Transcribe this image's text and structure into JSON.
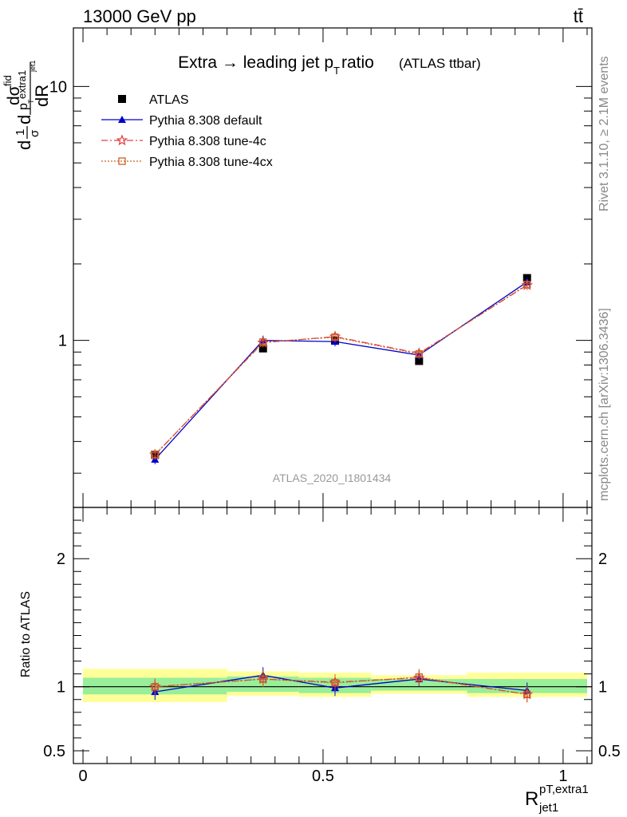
{
  "header": {
    "left": "13000 GeV pp",
    "right": "tt̄"
  },
  "side_labels": {
    "rivet": "Rivet 3.1.10, ≥ 2.1M events",
    "mcplots": "mcplots.cern.ch [arXiv:1306.3436]"
  },
  "watermark": "ATLAS_2020_I1801434",
  "chart_data": [
    {
      "type": "line",
      "title_main": "Extra → leading jet p",
      "title_sub": "T",
      "title_tail": " ratio",
      "title_small": "(ATLAS ttbar)",
      "ylabel": {
        "frac1_num": "1",
        "frac1_den": "σ",
        "d1": "d",
        "numerator_main": "dσ",
        "numerator_sup": "fid",
        "numerator_sub": "p",
        "numerator_sub2": "extra1",
        "numerator_sub3": "T",
        "numerator_sub4": "jet1",
        "denominator": "dR"
      },
      "yscale": "log",
      "xlim": [
        -0.02,
        1.06
      ],
      "ylim": [
        0.22,
        17
      ],
      "y_ticks": [
        {
          "v": 1,
          "label": "1"
        },
        {
          "v": 10,
          "label": "10"
        }
      ],
      "x_points": [
        0.15,
        0.375,
        0.525,
        0.7,
        0.925
      ],
      "x_bins": [
        [
          0,
          0.3
        ],
        [
          0.3,
          0.45
        ],
        [
          0.45,
          0.6
        ],
        [
          0.6,
          0.8
        ],
        [
          0.8,
          1.05
        ]
      ],
      "series": [
        {
          "name": "ATLAS",
          "style": "data",
          "color": "#000000",
          "values": [
            0.355,
            0.93,
            1.0,
            0.83,
            1.76
          ]
        },
        {
          "name": "Pythia 8.308 default",
          "style": "solid",
          "marker": "triangle",
          "color": "#0000cc",
          "values": [
            0.34,
            1.0,
            0.99,
            0.875,
            1.7
          ]
        },
        {
          "name": "Pythia 8.308 tune-4c",
          "style": "dashdot",
          "marker": "star",
          "color": "#e04040",
          "values": [
            0.355,
            0.98,
            1.035,
            0.89,
            1.65
          ]
        },
        {
          "name": "Pythia 8.308 tune-4cx",
          "style": "dotted",
          "marker": "square-open",
          "color": "#c86020",
          "values": [
            0.355,
            0.985,
            1.03,
            0.885,
            1.66
          ]
        }
      ]
    },
    {
      "type": "line",
      "ylabel": "Ratio to ATLAS",
      "xlabel_main": "R",
      "xlabel_sup": "pT,extra1",
      "xlabel_sub": "jet1",
      "xlim": [
        -0.02,
        1.06
      ],
      "ylim": [
        0.4,
        2.4
      ],
      "y_ticks": [
        {
          "v": 0.5,
          "label": "0.5"
        },
        {
          "v": 1,
          "label": "1"
        },
        {
          "v": 2,
          "label": "2"
        }
      ],
      "x_ticks": [
        {
          "v": 0,
          "label": "0"
        },
        {
          "v": 0.5,
          "label": "0.5"
        },
        {
          "v": 1,
          "label": "1"
        }
      ],
      "x_points": [
        0.15,
        0.375,
        0.525,
        0.7,
        0.925
      ],
      "bands": {
        "bins": [
          [
            0,
            0.3
          ],
          [
            0.3,
            0.45
          ],
          [
            0.45,
            0.6
          ],
          [
            0.6,
            0.8
          ],
          [
            0.8,
            1.05
          ]
        ],
        "stat_lo": [
          0.94,
          0.96,
          0.95,
          0.97,
          0.95
        ],
        "stat_hi": [
          1.07,
          1.08,
          1.07,
          1.06,
          1.06
        ],
        "total_lo": [
          0.88,
          0.93,
          0.92,
          0.945,
          0.92
        ],
        "total_hi": [
          1.14,
          1.12,
          1.11,
          1.09,
          1.11
        ],
        "stat_color": "#99ee99",
        "total_color": "#ffff99"
      },
      "series": [
        {
          "name": "Pythia 8.308 default",
          "style": "solid",
          "marker": "triangle",
          "color": "#0000cc",
          "values": [
            0.96,
            1.09,
            0.99,
            1.06,
            0.97
          ]
        },
        {
          "name": "Pythia 8.308 tune-4c",
          "style": "dashdot",
          "marker": "star",
          "color": "#e04040",
          "values": [
            1.0,
            1.06,
            1.035,
            1.07,
            0.94
          ]
        },
        {
          "name": "Pythia 8.308 tune-4cx",
          "style": "dotted",
          "marker": "square-open",
          "color": "#c86020",
          "values": [
            1.0,
            1.06,
            1.03,
            1.075,
            0.94
          ]
        }
      ]
    }
  ]
}
